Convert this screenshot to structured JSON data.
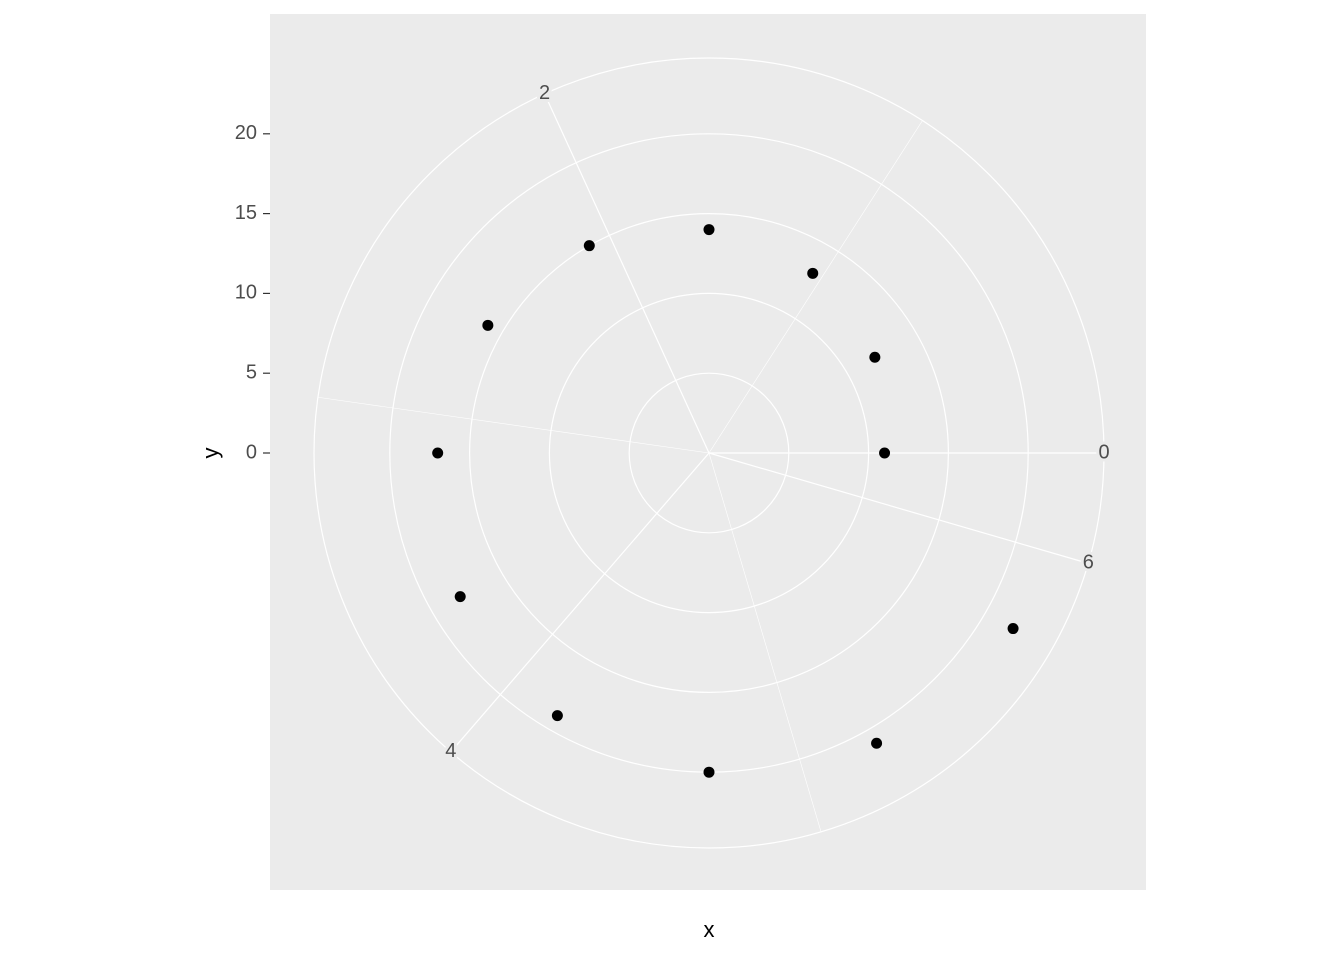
{
  "chart_data": {
    "type": "polar-scatter",
    "x_label": "x",
    "y_label": "y",
    "x": [
      0,
      0.5236,
      1.0472,
      1.5708,
      2.0944,
      2.618,
      3.1416,
      3.6652,
      4.1888,
      4.7124,
      5.236,
      5.7596
    ],
    "values": [
      11,
      12,
      13,
      14,
      15,
      16,
      17,
      18,
      19,
      20,
      21,
      22
    ],
    "color": "#000000",
    "xlim": [
      0,
      6.2832
    ],
    "xticks": [
      0,
      2,
      4,
      6
    ],
    "xminor": [
      1,
      3,
      5
    ],
    "ylim": [
      0,
      24.75
    ],
    "yticks": [
      0,
      5,
      10,
      15,
      20
    ],
    "grid": true
  }
}
